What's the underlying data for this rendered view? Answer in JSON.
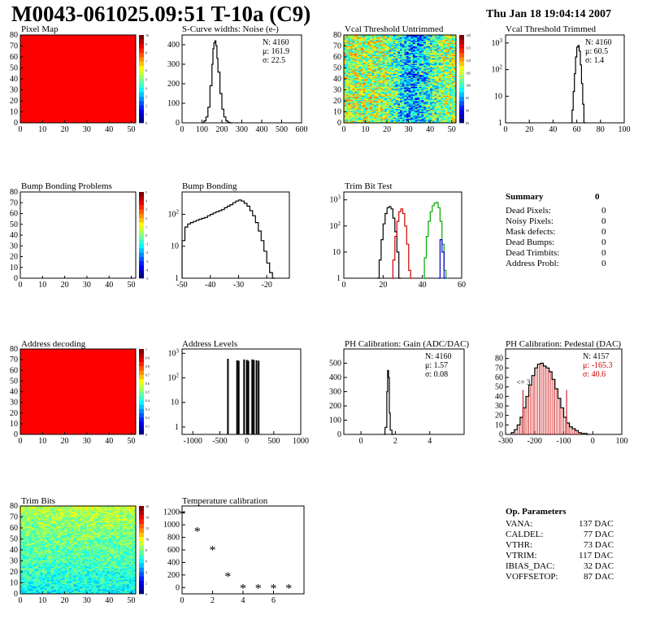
{
  "header": {
    "title": "M0043-061025.09:51 T-10a (C9)",
    "date": "Thu Jan 18 19:04:14 2007"
  },
  "summary": {
    "title": "Summary",
    "value": "0",
    "rows": [
      {
        "label": "Dead Pixels:",
        "value": "0"
      },
      {
        "label": "Noisy Pixels:",
        "value": "0"
      },
      {
        "label": "Mask defects:",
        "value": "0"
      },
      {
        "label": "Dead Bumps:",
        "value": "0"
      },
      {
        "label": "Dead Trimbits:",
        "value": "0"
      },
      {
        "label": "Address Probl:",
        "value": "0"
      }
    ]
  },
  "op_params": {
    "title": "Op. Parameters",
    "rows": [
      {
        "label": "VANA:",
        "value": "137 DAC"
      },
      {
        "label": "CALDEL:",
        "value": "77 DAC"
      },
      {
        "label": "VTHR:",
        "value": "73 DAC"
      },
      {
        "label": "VTRIM:",
        "value": "117 DAC"
      },
      {
        "label": "IBIAS_DAC:",
        "value": "32 DAC"
      },
      {
        "label": "VOFFSETOP:",
        "value": "87 DAC"
      }
    ]
  },
  "chart_data": [
    {
      "id": "pixel_map",
      "type": "heatmap",
      "title": "Pixel Map",
      "fill": "uniform",
      "color": "#ff0000",
      "xlim": [
        0,
        52
      ],
      "ylim": [
        0,
        80
      ],
      "xticks": [
        0,
        10,
        20,
        30,
        40,
        50
      ],
      "yticks": [
        0,
        10,
        20,
        30,
        40,
        50,
        60,
        70,
        80
      ],
      "palette": {
        "ticks": [
          "0",
          "1",
          "2",
          "3",
          "4",
          "5",
          "6",
          "7",
          "8",
          "9",
          "10"
        ]
      }
    },
    {
      "id": "scurve",
      "type": "histogram",
      "title": "S-Curve widths: Noise (e-)",
      "logy": false,
      "xlim": [
        0,
        600
      ],
      "ylim": [
        0,
        450
      ],
      "xticks": [
        0,
        100,
        200,
        300,
        400,
        500,
        600
      ],
      "yticks": [
        0,
        100,
        200,
        300,
        400
      ],
      "series": [
        {
          "color": "#000000",
          "bins": [
            [
              100,
              0
            ],
            [
              110,
              10
            ],
            [
              120,
              30
            ],
            [
              130,
              80
            ],
            [
              140,
              190
            ],
            [
              150,
              300
            ],
            [
              155,
              380
            ],
            [
              160,
              410
            ],
            [
              165,
              420
            ],
            [
              170,
              395
            ],
            [
              175,
              330
            ],
            [
              180,
              260
            ],
            [
              190,
              150
            ],
            [
              200,
              70
            ],
            [
              210,
              30
            ],
            [
              220,
              10
            ],
            [
              230,
              3
            ],
            [
              240,
              0
            ]
          ]
        }
      ],
      "stats": [
        {
          "text": "N: 4160"
        },
        {
          "text": "μ: 161.9"
        },
        {
          "text": "σ: 22.5"
        }
      ]
    },
    {
      "id": "vcal_untrimmed",
      "type": "heatmap",
      "title": "Vcal Threshold Untrimmed",
      "fill": "noise",
      "mode": "untrimmed",
      "xlim": [
        0,
        52
      ],
      "ylim": [
        0,
        80
      ],
      "xticks": [
        0,
        10,
        20,
        30,
        40,
        50
      ],
      "yticks": [
        0,
        10,
        20,
        30,
        40,
        50,
        60,
        70,
        80
      ],
      "palette": {
        "ticks": [
          "85",
          "90",
          "95",
          "100",
          "105",
          "110",
          "115",
          "120"
        ]
      }
    },
    {
      "id": "vcal_trimmed",
      "type": "histogram",
      "title": "Vcal Threshold Trimmed",
      "logy": true,
      "xlim": [
        0,
        100
      ],
      "ylim": [
        1,
        2000
      ],
      "xticks": [
        0,
        20,
        40,
        60,
        80,
        100
      ],
      "yticks": [
        1,
        10,
        100,
        1000
      ],
      "series": [
        {
          "color": "#000000",
          "bins": [
            [
              55,
              1
            ],
            [
              56,
              3
            ],
            [
              57,
              15
            ],
            [
              58,
              70
            ],
            [
              59,
              300
            ],
            [
              60,
              700
            ],
            [
              61,
              800
            ],
            [
              62,
              500
            ],
            [
              63,
              150
            ],
            [
              64,
              30
            ],
            [
              65,
              5
            ],
            [
              66,
              1
            ]
          ]
        }
      ],
      "stats": [
        {
          "text": "N: 4160"
        },
        {
          "text": "μ: 60.5"
        },
        {
          "text": "σ: 1.4"
        }
      ]
    },
    {
      "id": "bump_problems",
      "type": "heatmap",
      "title": "Bump Bonding Problems",
      "fill": "empty",
      "xlim": [
        0,
        52
      ],
      "ylim": [
        0,
        80
      ],
      "xticks": [
        0,
        10,
        20,
        30,
        40,
        50
      ],
      "yticks": [
        0,
        10,
        20,
        30,
        40,
        50,
        60,
        70,
        80
      ],
      "palette": {
        "ticks": [
          "-5",
          "-4",
          "-3",
          "-2",
          "-1",
          "0",
          "1",
          "2",
          "3",
          "4",
          "5"
        ]
      }
    },
    {
      "id": "bump_bonding",
      "type": "histogram",
      "title": "Bump Bonding",
      "logy": true,
      "xlim": [
        -50,
        -12
      ],
      "ylim": [
        1,
        500
      ],
      "xticks": [
        -50,
        -40,
        -30,
        -20
      ],
      "yticks": [
        1,
        10,
        100
      ],
      "series": [
        {
          "color": "#000000",
          "bins": [
            [
              -50,
              15
            ],
            [
              -49,
              40
            ],
            [
              -48,
              50
            ],
            [
              -47,
              55
            ],
            [
              -46,
              60
            ],
            [
              -45,
              65
            ],
            [
              -44,
              70
            ],
            [
              -43,
              75
            ],
            [
              -42,
              80
            ],
            [
              -41,
              90
            ],
            [
              -40,
              100
            ],
            [
              -39,
              110
            ],
            [
              -38,
              120
            ],
            [
              -37,
              130
            ],
            [
              -36,
              140
            ],
            [
              -35,
              160
            ],
            [
              -34,
              180
            ],
            [
              -33,
              200
            ],
            [
              -32,
              230
            ],
            [
              -31,
              260
            ],
            [
              -30,
              280
            ],
            [
              -29,
              260
            ],
            [
              -28,
              220
            ],
            [
              -27,
              180
            ],
            [
              -26,
              130
            ],
            [
              -25,
              90
            ],
            [
              -24,
              55
            ],
            [
              -23,
              30
            ],
            [
              -22,
              15
            ],
            [
              -21,
              7
            ],
            [
              -20,
              3
            ],
            [
              -19,
              1.5
            ],
            [
              -18,
              1
            ]
          ]
        }
      ]
    },
    {
      "id": "trim_bit_test",
      "type": "histogram",
      "title": "Trim Bit Test",
      "logy": true,
      "xlim": [
        0,
        60
      ],
      "ylim": [
        1,
        2000
      ],
      "xticks": [
        0,
        20,
        40,
        60
      ],
      "yticks": [
        1,
        10,
        100,
        1000
      ],
      "series": [
        {
          "color": "#000000",
          "bins": [
            [
              17,
              1
            ],
            [
              18,
              5
            ],
            [
              19,
              30
            ],
            [
              20,
              120
            ],
            [
              21,
              300
            ],
            [
              22,
              500
            ],
            [
              23,
              550
            ],
            [
              24,
              450
            ],
            [
              25,
              200
            ],
            [
              26,
              60
            ],
            [
              27,
              10
            ],
            [
              28,
              1
            ]
          ]
        },
        {
          "color": "#cc0000",
          "bins": [
            [
              24,
              1
            ],
            [
              25,
              5
            ],
            [
              26,
              40
            ],
            [
              27,
              150
            ],
            [
              28,
              350
            ],
            [
              29,
              450
            ],
            [
              30,
              300
            ],
            [
              31,
              100
            ],
            [
              32,
              20
            ],
            [
              33,
              2
            ],
            [
              34,
              1
            ]
          ]
        },
        {
          "color": "#00aa00",
          "bins": [
            [
              40,
              1
            ],
            [
              41,
              6
            ],
            [
              42,
              40
            ],
            [
              43,
              150
            ],
            [
              44,
              350
            ],
            [
              45,
              600
            ],
            [
              46,
              750
            ],
            [
              47,
              800
            ],
            [
              48,
              500
            ],
            [
              49,
              150
            ],
            [
              50,
              20
            ],
            [
              51,
              2
            ],
            [
              52,
              1
            ]
          ]
        },
        {
          "color": "#0000cc",
          "bins": [
            [
              48,
              1
            ],
            [
              49,
              30
            ],
            [
              50,
              10
            ],
            [
              51,
              1
            ]
          ]
        }
      ]
    },
    {
      "id": "address_decoding",
      "type": "heatmap",
      "title": "Address decoding",
      "fill": "uniform",
      "color": "#ff0000",
      "xlim": [
        0,
        52
      ],
      "ylim": [
        0,
        80
      ],
      "xticks": [
        0,
        10,
        20,
        30,
        40,
        50
      ],
      "yticks": [
        0,
        10,
        20,
        30,
        40,
        50,
        60,
        70,
        80
      ],
      "palette": {
        "ticks": [
          "0",
          "0.1",
          "0.2",
          "0.3",
          "0.4",
          "0.5",
          "0.6",
          "0.7",
          "0.8",
          "0.9",
          "1"
        ]
      }
    },
    {
      "id": "address_levels",
      "type": "spikes",
      "title": "Address Levels",
      "logy": true,
      "xlim": [
        -1200,
        1000
      ],
      "ylim": [
        0.5,
        1500
      ],
      "xticks": [
        -1000,
        -500,
        0,
        500,
        1000
      ],
      "yticks": [
        1,
        10,
        100,
        1000
      ],
      "spikes": [
        [
          -350,
          600
        ],
        [
          -180,
          520
        ],
        [
          -150,
          500
        ],
        [
          -50,
          560
        ],
        [
          0,
          540
        ],
        [
          30,
          500
        ],
        [
          100,
          560
        ],
        [
          130,
          540
        ],
        [
          180,
          520
        ],
        [
          220,
          500
        ]
      ]
    },
    {
      "id": "ph_gain",
      "type": "histogram",
      "title": "PH Calibration: Gain (ADC/DAC)",
      "logy": false,
      "xlim": [
        -1,
        6
      ],
      "ylim": [
        0,
        600
      ],
      "xticks": [
        0,
        2,
        4
      ],
      "yticks": [
        0,
        100,
        200,
        300,
        400,
        500
      ],
      "series": [
        {
          "color": "#000000",
          "bins": [
            [
              1.3,
              0
            ],
            [
              1.4,
              50
            ],
            [
              1.5,
              300
            ],
            [
              1.55,
              450
            ],
            [
              1.6,
              400
            ],
            [
              1.65,
              150
            ],
            [
              1.7,
              30
            ],
            [
              1.8,
              0
            ]
          ]
        }
      ],
      "stats": [
        {
          "text": "N: 4160"
        },
        {
          "text": "μ: 1.57"
        },
        {
          "text": "σ: 0.08"
        }
      ]
    },
    {
      "id": "ph_pedestal",
      "type": "histogram",
      "title": "PH Calibration: Pedestal (DAC)",
      "logy": false,
      "xlim": [
        -300,
        100
      ],
      "ylim": [
        0,
        90
      ],
      "xticks": [
        -300,
        -200,
        -100,
        0,
        100
      ],
      "yticks": [
        0,
        10,
        20,
        30,
        40,
        50,
        60,
        70,
        80
      ],
      "series": [
        {
          "color": "#000000",
          "filled": "#cc0000",
          "bins": [
            [
              -280,
              2
            ],
            [
              -270,
              5
            ],
            [
              -260,
              10
            ],
            [
              -250,
              18
            ],
            [
              -240,
              28
            ],
            [
              -230,
              40
            ],
            [
              -220,
              52
            ],
            [
              -210,
              62
            ],
            [
              -200,
              70
            ],
            [
              -190,
              74
            ],
            [
              -180,
              75
            ],
            [
              -170,
              72
            ],
            [
              -160,
              70
            ],
            [
              -150,
              66
            ],
            [
              -140,
              58
            ],
            [
              -130,
              48
            ],
            [
              -120,
              38
            ],
            [
              -110,
              28
            ],
            [
              -100,
              18
            ],
            [
              -90,
              12
            ],
            [
              -80,
              8
            ],
            [
              -70,
              6
            ],
            [
              -60,
              4
            ],
            [
              -50,
              2
            ],
            [
              -40,
              1
            ],
            [
              -30,
              1
            ],
            [
              -20,
              0
            ]
          ]
        }
      ],
      "vlines": [
        -240,
        -90
      ],
      "annotation": "<= 3",
      "stats": [
        {
          "text": "N: 4157",
          "color": "#000000"
        },
        {
          "text": "μ: -165.3",
          "color": "#cc0000"
        },
        {
          "text": "σ: 40.6",
          "color": "#cc0000"
        }
      ]
    },
    {
      "id": "trim_bits",
      "type": "heatmap",
      "title": "Trim Bits",
      "fill": "noise",
      "mode": "trimbits",
      "xlim": [
        0,
        52
      ],
      "ylim": [
        0,
        80
      ],
      "xticks": [
        0,
        10,
        20,
        30,
        40,
        50
      ],
      "yticks": [
        0,
        10,
        20,
        30,
        40,
        50,
        60,
        70,
        80
      ],
      "palette": {
        "ticks": [
          "0",
          "2",
          "4",
          "6",
          "8",
          "10",
          "12",
          "14",
          "16"
        ]
      }
    },
    {
      "id": "temp_cal",
      "type": "scatter",
      "title": "Temperature calibration",
      "logy": false,
      "xlim": [
        0,
        8
      ],
      "ylim": [
        -100,
        1300
      ],
      "xticks": [
        0,
        2,
        4,
        6
      ],
      "yticks": [
        0,
        200,
        400,
        600,
        800,
        1000,
        1200
      ],
      "points": [
        [
          0,
          1150
        ],
        [
          1,
          880
        ],
        [
          2,
          580
        ],
        [
          3,
          160
        ],
        [
          4,
          -30
        ],
        [
          5,
          -30
        ],
        [
          6,
          -30
        ],
        [
          7,
          -30
        ]
      ]
    }
  ]
}
